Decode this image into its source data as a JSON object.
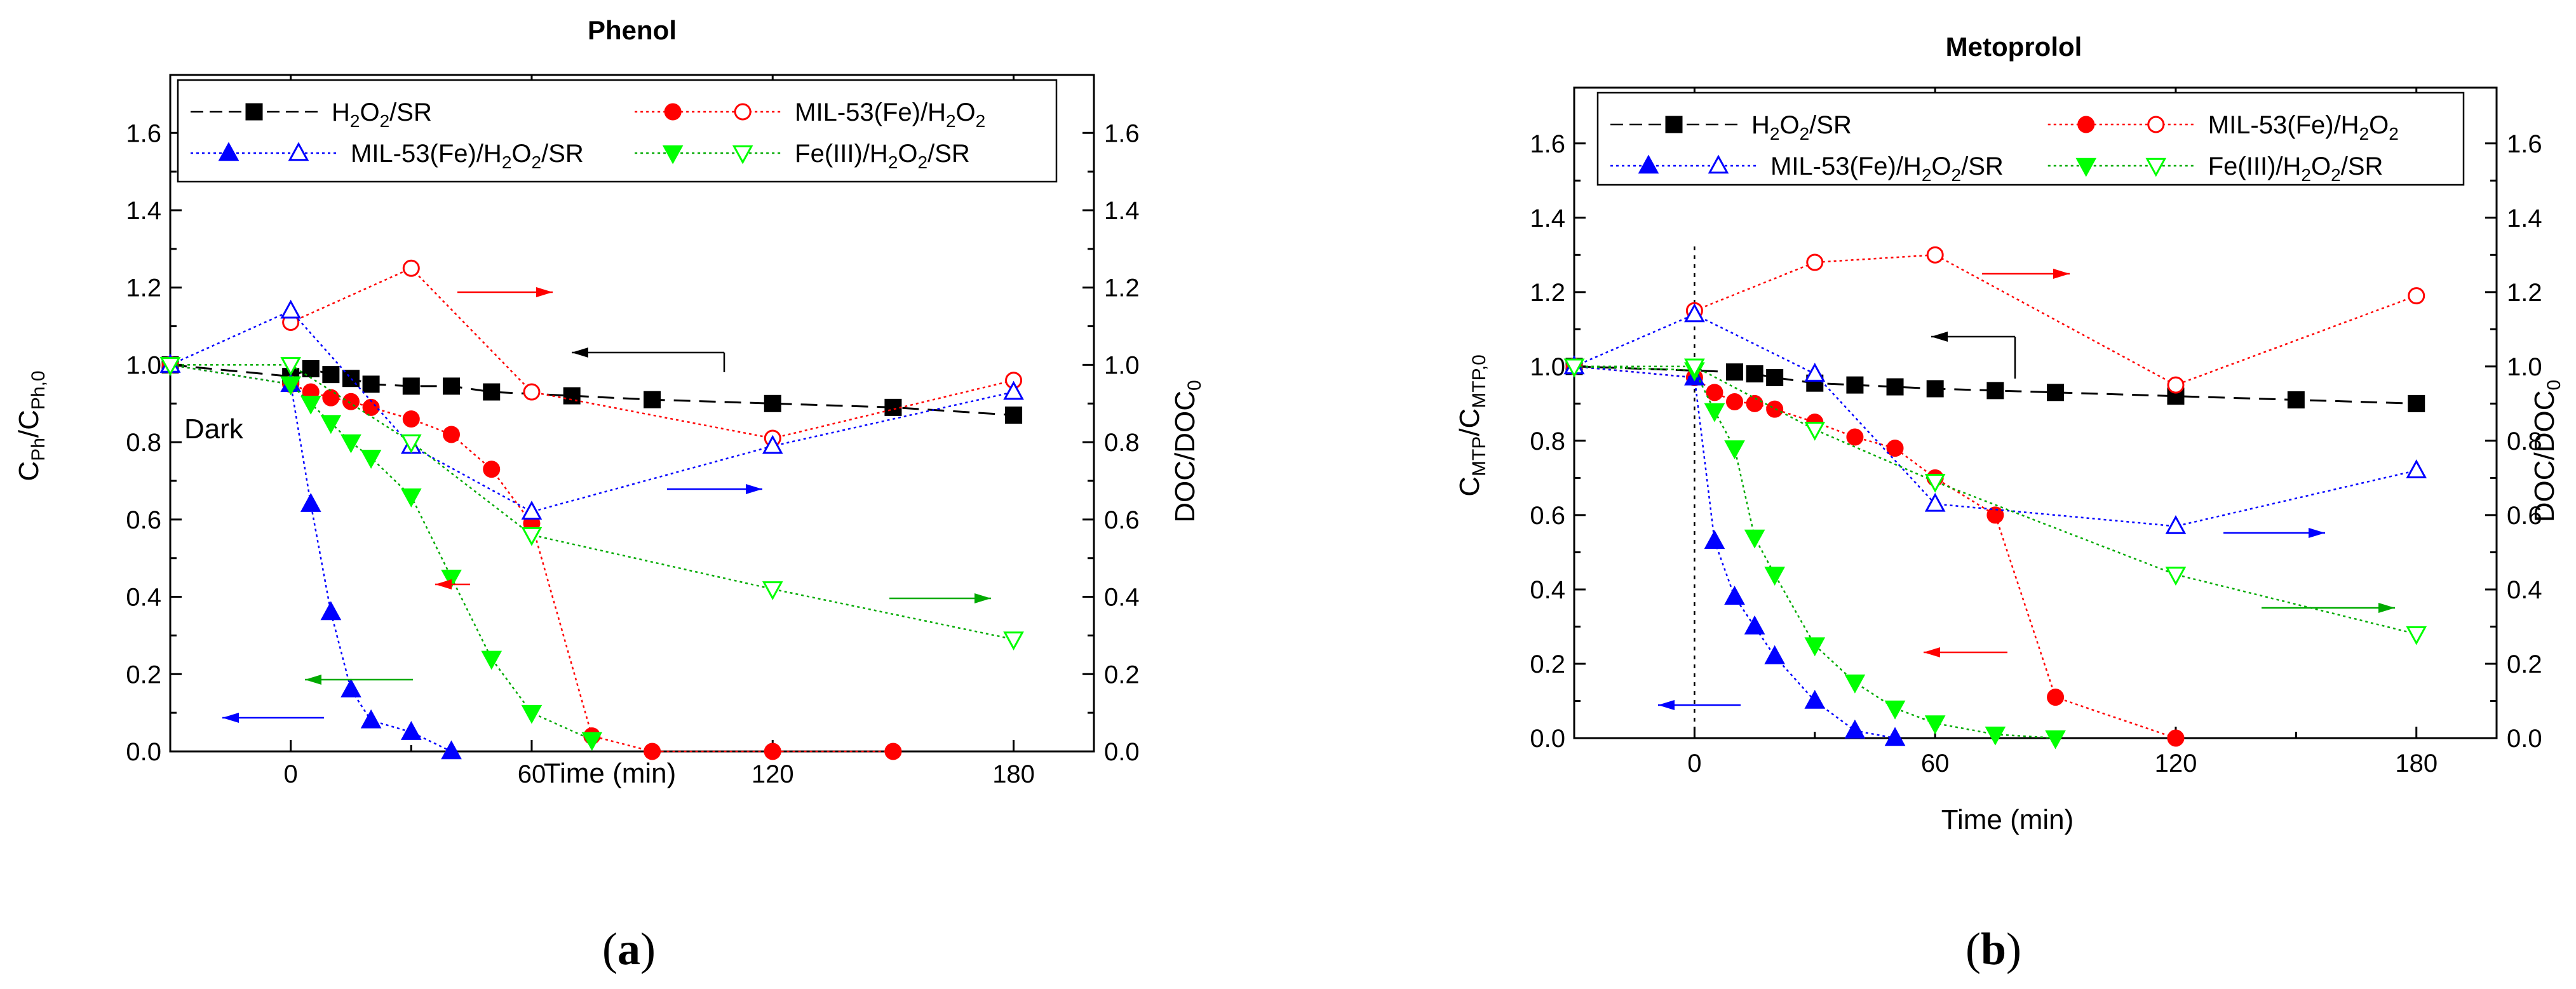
{
  "colors": {
    "black": "#000000",
    "red": "#ff0000",
    "blue": "#0000ff",
    "green": "#00ff00",
    "green_line": "#00aa00"
  },
  "panels": [
    {
      "caption_open": "(",
      "caption_letter": "a",
      "caption_close": ")",
      "title": "Phenol",
      "xlabel": "Time (min)",
      "ylabel_left": {
        "main": "C",
        "sub1": "Ph",
        "mid": "/C",
        "sub2": "Ph,0"
      },
      "ylabel_right": {
        "main": "DOC/DOC",
        "sub": "0"
      },
      "annotation": "Dark",
      "xticks": [
        "0",
        "60",
        "120",
        "180"
      ],
      "yticks": [
        "0.0",
        "0.2",
        "0.4",
        "0.6",
        "0.8",
        "1.0",
        "1.2",
        "1.4",
        "1.6"
      ],
      "yticks_right": [
        "0.0",
        "0.2",
        "0.4",
        "0.6",
        "0.8",
        "1.0",
        "1.2",
        "1.4",
        "1.6"
      ],
      "legend": [
        {
          "label": "H2O2/SR",
          "parts": [
            "H",
            "2",
            "O",
            "2",
            "/SR"
          ]
        },
        {
          "label": "MIL-53(Fe)/H2O2",
          "parts": [
            "MIL-53(Fe)/H",
            "2",
            "O",
            "2",
            ""
          ]
        },
        {
          "label": "MIL-53(Fe)/H2O2/SR",
          "parts": [
            "MIL-53(Fe)/H",
            "2",
            "O",
            "2",
            "/SR"
          ]
        },
        {
          "label": "Fe(III)/H2O2/SR",
          "parts": [
            "Fe(III)/H",
            "2",
            "O",
            "2",
            "/SR"
          ]
        }
      ]
    },
    {
      "caption_open": "(",
      "caption_letter": "b",
      "caption_close": ")",
      "title": "Metoprolol",
      "xlabel": "Time (min)",
      "ylabel_left": {
        "main": "C",
        "sub1": "MTP",
        "mid": "/C",
        "sub2": "MTP,0"
      },
      "ylabel_right": {
        "main": "DOC/DOC",
        "sub": "0"
      },
      "xticks": [
        "0",
        "60",
        "120",
        "180"
      ],
      "yticks": [
        "0.0",
        "0.2",
        "0.4",
        "0.6",
        "0.8",
        "1.0",
        "1.2",
        "1.4",
        "1.6"
      ],
      "yticks_right": [
        "0.0",
        "0.2",
        "0.4",
        "0.6",
        "0.8",
        "1.0",
        "1.2",
        "1.4",
        "1.6"
      ],
      "legend": [
        {
          "label": "H2O2/SR",
          "parts": [
            "H",
            "2",
            "O",
            "2",
            "/SR"
          ]
        },
        {
          "label": "MIL-53(Fe)/H2O2",
          "parts": [
            "MIL-53(Fe)/H",
            "2",
            "O",
            "2",
            ""
          ]
        },
        {
          "label": "MIL-53(Fe)/H2O2/SR",
          "parts": [
            "MIL-53(Fe)/H",
            "2",
            "O",
            "2",
            "/SR"
          ]
        },
        {
          "label": "Fe(III)/H2O2/SR",
          "parts": [
            "Fe(III)/H",
            "2",
            "O",
            "2",
            "/SR"
          ]
        }
      ]
    }
  ],
  "chart_data": [
    {
      "type": "scatter",
      "title": "Phenol",
      "xlabel": "Time (min)",
      "ylabel": "CPh/CPh,0",
      "ylabel_right": "DOC/DOC0",
      "xlim": [
        -30,
        200
      ],
      "ylim": [
        0,
        1.75
      ],
      "ylim_right": [
        0,
        1.75
      ],
      "legend_position": "top",
      "series": [
        {
          "name": "H2O2/SR",
          "axis": "left",
          "marker": "square-filled",
          "color": "#000000",
          "line": "dash",
          "x": [
            -30,
            0,
            5,
            10,
            15,
            20,
            30,
            40,
            50,
            70,
            90,
            120,
            150,
            180
          ],
          "y": [
            1.0,
            0.97,
            0.99,
            0.975,
            0.965,
            0.95,
            0.945,
            0.945,
            0.93,
            0.92,
            0.91,
            0.9,
            0.89,
            0.87
          ]
        },
        {
          "name": "MIL-53(Fe)/H2O2",
          "axis": "left",
          "marker": "circle-filled",
          "color": "#ff0000",
          "line": "dot",
          "x": [
            -30,
            0,
            5,
            10,
            15,
            20,
            30,
            40,
            50,
            60,
            75,
            90,
            120,
            150
          ],
          "y": [
            1.0,
            0.95,
            0.93,
            0.915,
            0.905,
            0.89,
            0.86,
            0.82,
            0.73,
            0.59,
            0.04,
            0.0,
            0.0,
            0.0
          ]
        },
        {
          "name": "MIL-53(Fe)/H2O2/SR",
          "axis": "left",
          "marker": "triangle-up-filled",
          "color": "#0000ff",
          "line": "dot",
          "x": [
            -30,
            0,
            5,
            10,
            15,
            20,
            30,
            40
          ],
          "y": [
            1.0,
            0.95,
            0.64,
            0.36,
            0.16,
            0.08,
            0.05,
            0.0
          ]
        },
        {
          "name": "Fe(III)/H2O2/SR",
          "axis": "left",
          "marker": "triangle-down-filled",
          "color": "#00ff00",
          "line": "dot",
          "x": [
            -30,
            0,
            5,
            10,
            15,
            20,
            30,
            40,
            50,
            60,
            75
          ],
          "y": [
            1.0,
            0.95,
            0.9,
            0.85,
            0.8,
            0.76,
            0.66,
            0.45,
            0.24,
            0.1,
            0.03
          ]
        },
        {
          "name": "MIL-53(Fe)/H2O2 DOC",
          "axis": "right",
          "marker": "circle-open",
          "color": "#ff0000",
          "line": "dot",
          "x": [
            0,
            30,
            60,
            120,
            180
          ],
          "y": [
            1.11,
            1.25,
            0.93,
            0.81,
            0.96
          ]
        },
        {
          "name": "MIL-53(Fe)/H2O2/SR DOC",
          "axis": "right",
          "marker": "triangle-up-open",
          "color": "#0000ff",
          "line": "dot",
          "x": [
            -30,
            0,
            30,
            60,
            120,
            180
          ],
          "y": [
            1.0,
            1.14,
            0.79,
            0.62,
            0.79,
            0.93
          ]
        },
        {
          "name": "Fe(III)/H2O2/SR DOC",
          "axis": "right",
          "marker": "triangle-down-open",
          "color": "#00ff00",
          "line": "dot",
          "x": [
            -30,
            0,
            30,
            60,
            120,
            180
          ],
          "y": [
            1.0,
            1.0,
            0.8,
            0.56,
            0.42,
            0.29
          ]
        }
      ],
      "annotations": [
        "Dark"
      ]
    },
    {
      "type": "scatter",
      "title": "Metoprolol",
      "xlabel": "Time (min)",
      "ylabel": "CMTP/CMTP,0",
      "ylabel_right": "DOC/DOC0",
      "xlim": [
        -30,
        200
      ],
      "ylim": [
        0,
        1.75
      ],
      "ylim_right": [
        0,
        1.75
      ],
      "legend_position": "top",
      "series": [
        {
          "name": "H2O2/SR",
          "axis": "left",
          "marker": "square-filled",
          "color": "#000000",
          "line": "dash",
          "x": [
            -30,
            10,
            15,
            20,
            30,
            40,
            50,
            60,
            75,
            90,
            120,
            150,
            180
          ],
          "y": [
            1.0,
            0.985,
            0.98,
            0.97,
            0.955,
            0.95,
            0.945,
            0.94,
            0.935,
            0.93,
            0.92,
            0.91,
            0.9
          ]
        },
        {
          "name": "MIL-53(Fe)/H2O2",
          "axis": "left",
          "marker": "circle-filled",
          "color": "#ff0000",
          "line": "dot",
          "x": [
            -30,
            0,
            5,
            10,
            15,
            20,
            30,
            40,
            50,
            60,
            75,
            90,
            120
          ],
          "y": [
            1.0,
            0.97,
            0.93,
            0.905,
            0.9,
            0.885,
            0.85,
            0.81,
            0.78,
            0.7,
            0.6,
            0.11,
            0.0
          ]
        },
        {
          "name": "MIL-53(Fe)/H2O2/SR",
          "axis": "left",
          "marker": "triangle-up-filled",
          "color": "#0000ff",
          "line": "dot",
          "x": [
            -30,
            0,
            5,
            10,
            15,
            20,
            30,
            40,
            50
          ],
          "y": [
            1.0,
            0.97,
            0.53,
            0.38,
            0.3,
            0.22,
            0.1,
            0.02,
            0.0
          ]
        },
        {
          "name": "Fe(III)/H2O2/SR",
          "axis": "left",
          "marker": "triangle-down-filled",
          "color": "#00ff00",
          "line": "dot",
          "x": [
            -30,
            0,
            5,
            10,
            15,
            20,
            30,
            40,
            50,
            60,
            75,
            90
          ],
          "y": [
            1.0,
            0.99,
            0.88,
            0.78,
            0.54,
            0.44,
            0.25,
            0.15,
            0.08,
            0.04,
            0.01,
            0.0
          ]
        },
        {
          "name": "MIL-53(Fe)/H2O2 DOC",
          "axis": "right",
          "marker": "circle-open",
          "color": "#ff0000",
          "line": "dot",
          "x": [
            0,
            30,
            60,
            120,
            180
          ],
          "y": [
            1.15,
            1.28,
            1.3,
            0.95,
            1.19
          ]
        },
        {
          "name": "MIL-53(Fe)/H2O2/SR DOC",
          "axis": "right",
          "marker": "triangle-up-open",
          "color": "#0000ff",
          "line": "dot",
          "x": [
            -30,
            0,
            30,
            60,
            120,
            180
          ],
          "y": [
            1.0,
            1.14,
            0.98,
            0.63,
            0.57,
            0.72
          ]
        },
        {
          "name": "Fe(III)/H2O2/SR DOC",
          "axis": "right",
          "marker": "triangle-down-open",
          "color": "#00ff00",
          "line": "dot",
          "x": [
            -30,
            0,
            30,
            60,
            120,
            180
          ],
          "y": [
            1.0,
            1.0,
            0.83,
            0.69,
            0.44,
            0.28
          ]
        }
      ],
      "annotations": []
    }
  ]
}
